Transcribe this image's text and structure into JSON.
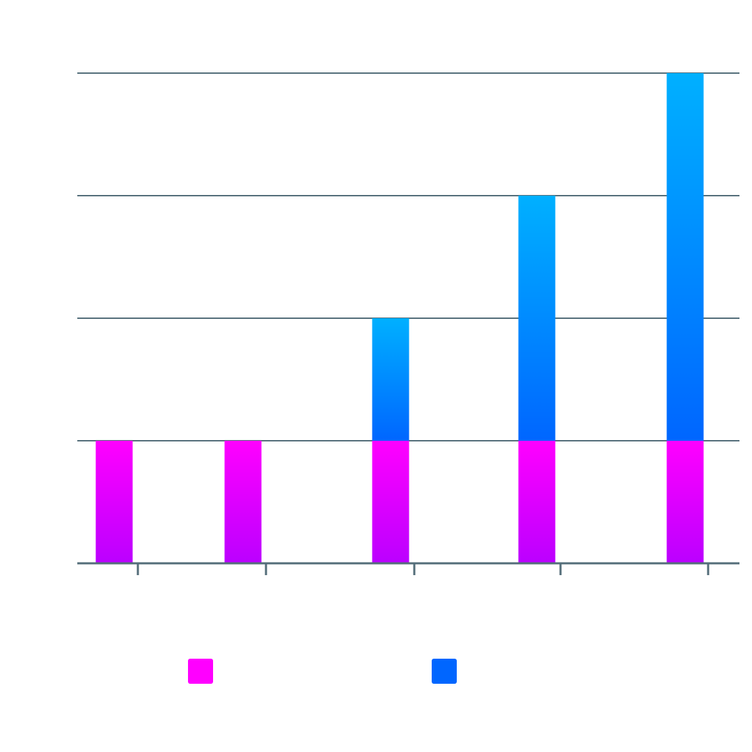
{
  "chart_data": {
    "type": "bar",
    "stacked": true,
    "categories": [
      "",
      "",
      "",
      "",
      ""
    ],
    "series": [
      {
        "values": [
          1,
          1,
          1,
          1,
          1
        ],
        "color": "#ff00ff",
        "gradient_end": "#bb00ff"
      },
      {
        "values": [
          0,
          0,
          1,
          2,
          3
        ],
        "color": "#0066ff",
        "gradient_end": "#00b0ff"
      }
    ],
    "ylim": [
      0,
      4
    ],
    "grid": true,
    "legend": "bottom",
    "title": "",
    "xlabel": "",
    "ylabel": "",
    "axis_color": "#546e7a"
  }
}
